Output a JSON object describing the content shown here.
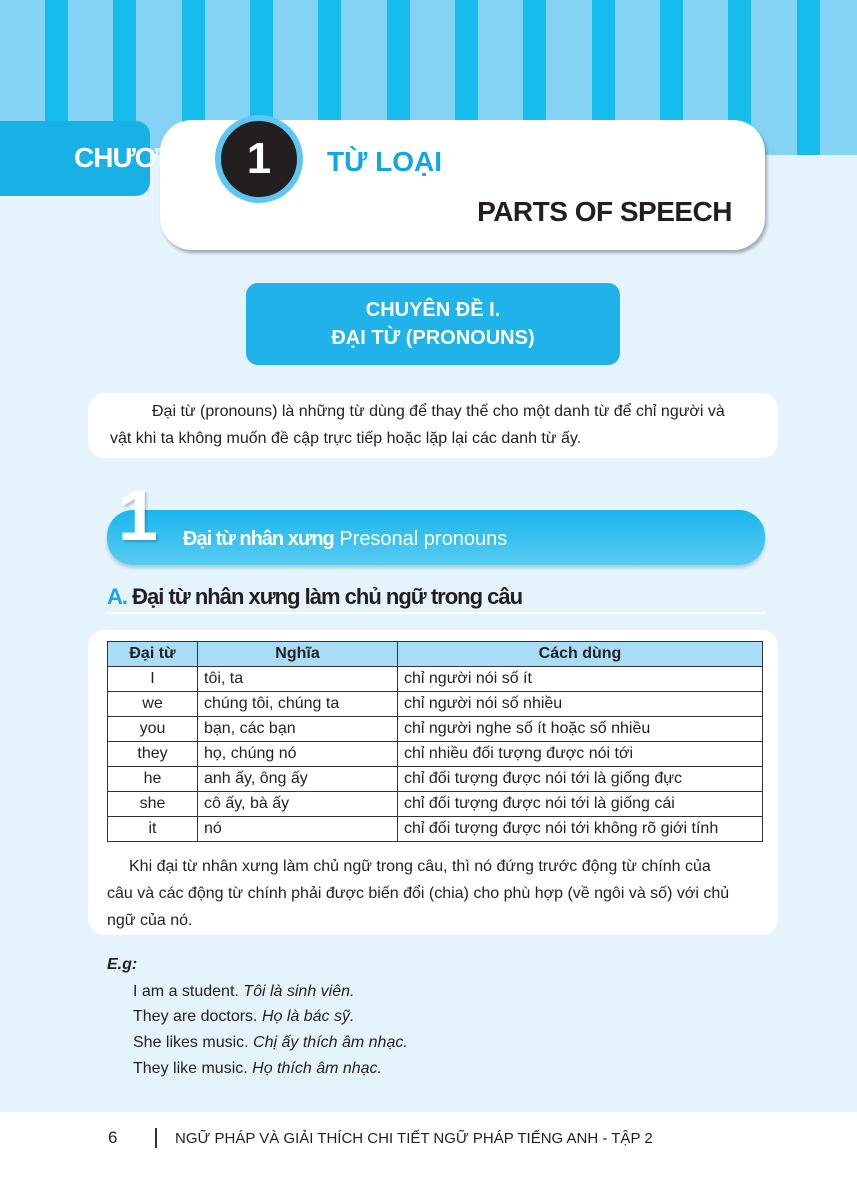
{
  "header": {
    "chapter_label": "CHƯƠNG",
    "chapter_number": "1",
    "title_vi": "TỪ LOẠI",
    "title_en": "PARTS OF SPEECH"
  },
  "topic": {
    "line1": "CHUYÊN ĐỀ I.",
    "line2": "ĐẠI TỪ (PRONOUNS)"
  },
  "intro": {
    "line1": "Đại từ (pronouns) là những từ dùng để thay thế cho một danh từ để chỉ người và",
    "line2": "vật khi ta không muốn đề cập trực tiếp hoặc lặp lại các danh từ ấy."
  },
  "section": {
    "number": "1",
    "title_vi": "Đại từ nhân xưng",
    "title_en": "Presonal pronouns"
  },
  "subsection": {
    "letter": "A.",
    "title": "Đại từ nhân xưng làm chủ ngữ trong câu"
  },
  "table": {
    "headers": [
      "Đại từ",
      "Nghĩa",
      "Cách dùng"
    ],
    "rows": [
      [
        "I",
        "tôi, ta",
        "chỉ người nói số ít"
      ],
      [
        "we",
        "chúng tôi, chúng ta",
        "chỉ người nói số nhiều"
      ],
      [
        "you",
        "bạn, các bạn",
        "chỉ người nghe số ít hoặc số nhiều"
      ],
      [
        "they",
        "họ, chúng nó",
        "chỉ nhiều đối tượng được nói tới"
      ],
      [
        "he",
        "anh ấy, ông ấy",
        "chỉ đối tượng được nói tới là giống đực"
      ],
      [
        "she",
        "cô ấy, bà ấy",
        "chỉ đối tượng được nói tới là giống cái"
      ],
      [
        "it",
        "nó",
        "chỉ đối tượng được nói tới không rõ giới tính"
      ]
    ]
  },
  "explanation": {
    "line1": "Khi đại từ nhân xưng làm chủ ngữ trong câu, thì nó đứng trước động từ chính của",
    "line2": "câu và các động từ chính phải được biến đổi (chia) cho phù hợp (về ngôi và số) với chủ",
    "line3": "ngữ của nó."
  },
  "examples": {
    "label": "E.g:",
    "items": [
      {
        "en": "I am a student.",
        "vi": "Tôi là sinh viên."
      },
      {
        "en": "They are doctors.",
        "vi": "Họ là bác sỹ."
      },
      {
        "en": "She likes music.",
        "vi": "Chị ấy thích âm nhạc."
      },
      {
        "en": "They like music.",
        "vi": "Họ thích âm nhạc."
      }
    ]
  },
  "footer": {
    "page_number": "6",
    "book_title": "NGỮ PHÁP VÀ GIẢI THÍCH CHI TIẾT NGỮ PHÁP TIẾNG ANH - TẬP 2"
  },
  "colors": {
    "accent": "#17b1e6",
    "stripe": "#16bcec",
    "background": "#e4f3fc"
  }
}
